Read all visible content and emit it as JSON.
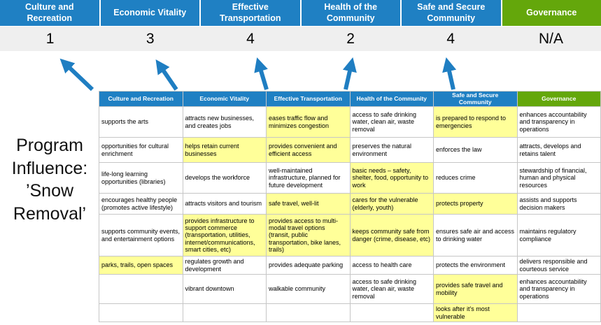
{
  "title": "Program Influence: ’Snow Removal’",
  "colors": {
    "header_blue": "#1F80C3",
    "header_green": "#64A70B",
    "highlight_yellow": "#FFFF99",
    "score_bg": "#EFEFEF",
    "arrow_blue": "#1F7EC2",
    "grid_line": "#C6C6C6"
  },
  "banner": {
    "columns": [
      {
        "label": "Culture and Recreation",
        "score": "1",
        "color": "blue"
      },
      {
        "label": "Economic Vitality",
        "score": "3",
        "color": "blue"
      },
      {
        "label": "Effective Transportation",
        "score": "4",
        "color": "blue"
      },
      {
        "label": "Health of the Community",
        "score": "2",
        "color": "blue"
      },
      {
        "label": "Safe and Secure Community",
        "score": "4",
        "color": "blue"
      },
      {
        "label": "Governance",
        "score": "N/A",
        "color": "green"
      }
    ]
  },
  "matrix": {
    "headers": [
      {
        "label": "Culture and Recreation",
        "color": "blue"
      },
      {
        "label": "Economic Vitality",
        "color": "blue"
      },
      {
        "label": "Effective Transportation",
        "color": "blue"
      },
      {
        "label": "Health of the Community",
        "color": "blue"
      },
      {
        "label": "Safe and Secure Community",
        "color": "blue"
      },
      {
        "label": "Governance",
        "color": "green"
      }
    ],
    "rows": [
      [
        {
          "t": "supports the arts",
          "h": false
        },
        {
          "t": "attracts new businesses, and creates jobs",
          "h": false
        },
        {
          "t": "eases traffic flow and minimizes congestion",
          "h": true
        },
        {
          "t": "access to safe drinking water, clean air, waste removal",
          "h": false
        },
        {
          "t": "is prepared to respond to emergencies",
          "h": true
        },
        {
          "t": "enhances accountability and transparency in operations",
          "h": false
        }
      ],
      [
        {
          "t": "opportunities for cultural enrichment",
          "h": false
        },
        {
          "t": "helps retain current businesses",
          "h": true
        },
        {
          "t": "provides convenient and efficient access",
          "h": true
        },
        {
          "t": "preserves the natural environment",
          "h": false
        },
        {
          "t": "enforces the law",
          "h": false
        },
        {
          "t": "attracts, develops and retains talent",
          "h": false
        }
      ],
      [
        {
          "t": "life-long learning opportunities (libraries)",
          "h": false
        },
        {
          "t": "develops the workforce",
          "h": false
        },
        {
          "t": "well-maintained infrastructure, planned for future development",
          "h": false
        },
        {
          "t": "basic needs – safety, shelter, food, opportunity to work",
          "h": true
        },
        {
          "t": "reduces crime",
          "h": false
        },
        {
          "t": "stewardship of financial, human and physical resources",
          "h": false
        }
      ],
      [
        {
          "t": "encourages healthy people (promotes active lifestyle)",
          "h": false
        },
        {
          "t": "attracts visitors and tourism",
          "h": false
        },
        {
          "t": "safe travel, well-lit",
          "h": true
        },
        {
          "t": "cares for the vulnerable (elderly, youth)",
          "h": true
        },
        {
          "t": "protects property",
          "h": true
        },
        {
          "t": "assists and supports decision makers",
          "h": false
        }
      ],
      [
        {
          "t": "supports community events, and entertainment options",
          "h": false
        },
        {
          "t": "provides infrastructure to support commerce (transportation, utilities, internet/communications, smart cities, etc)",
          "h": true
        },
        {
          "t": "provides access to multi-modal travel options (transit, public transportation, bike lanes, trails)",
          "h": true
        },
        {
          "t": "keeps community safe from danger (crime, disease, etc)",
          "h": true
        },
        {
          "t": "ensures safe air and access to drinking water",
          "h": false
        },
        {
          "t": "maintains regulatory compliance",
          "h": false
        }
      ],
      [
        {
          "t": "parks, trails, open spaces",
          "h": true
        },
        {
          "t": "regulates growth and development",
          "h": false
        },
        {
          "t": "provides adequate parking",
          "h": false
        },
        {
          "t": "access to health care",
          "h": false
        },
        {
          "t": "protects the environment",
          "h": false
        },
        {
          "t": "delivers responsible and courteous service",
          "h": false
        }
      ],
      [
        {
          "t": "",
          "h": false
        },
        {
          "t": "vibrant downtown",
          "h": false
        },
        {
          "t": "walkable community",
          "h": false
        },
        {
          "t": "access to safe drinking water, clean air, waste removal",
          "h": false
        },
        {
          "t": "provides safe travel and mobility",
          "h": true
        },
        {
          "t": "enhances accountability and transparency in operations",
          "h": false
        }
      ],
      [
        {
          "t": "",
          "h": false
        },
        {
          "t": "",
          "h": false
        },
        {
          "t": "",
          "h": false
        },
        {
          "t": "",
          "h": false
        },
        {
          "t": "looks after it's most vulnerable",
          "h": true
        },
        {
          "t": "",
          "h": false
        }
      ]
    ]
  }
}
